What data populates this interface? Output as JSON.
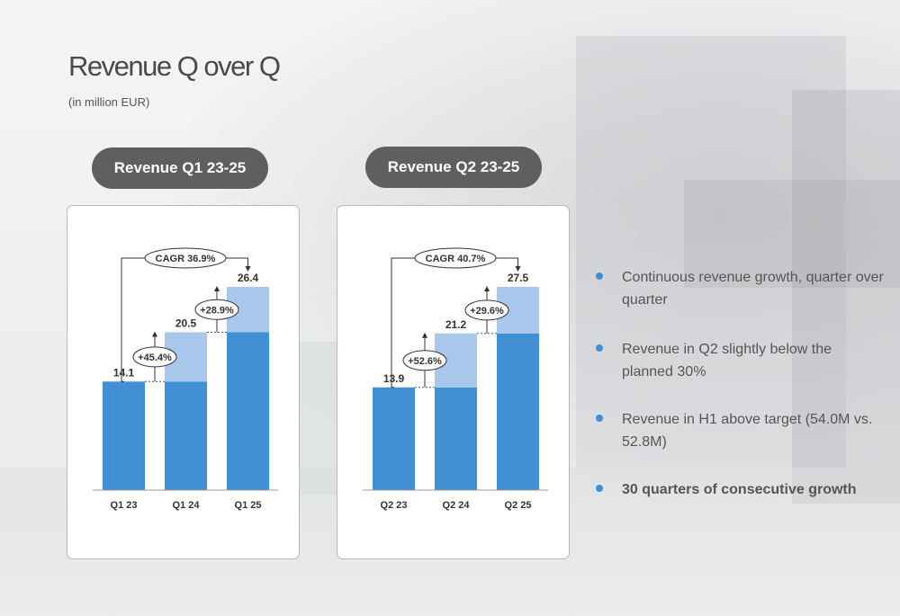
{
  "header": {
    "title": "Revenue Q over Q",
    "subtitle": "(in million EUR)"
  },
  "colors": {
    "base_bar": "#4190d4",
    "growth_bar": "#a9c7ea",
    "pill": "#5f5f5f",
    "bullet": "#3f8fd6"
  },
  "chart_data": [
    {
      "type": "bar",
      "title": "Revenue Q1 23-25",
      "categories": [
        "Q1 23",
        "Q1 24",
        "Q1 25"
      ],
      "values": [
        14.1,
        20.5,
        26.4
      ],
      "value_labels": [
        "14.1",
        "20.5",
        "26.4"
      ],
      "growth_labels": [
        "+45.4%",
        "+28.9%"
      ],
      "cagr_label": "CAGR 36.9%",
      "ylim": [
        0,
        26.4
      ]
    },
    {
      "type": "bar",
      "title": "Revenue Q2 23-25",
      "categories": [
        "Q2 23",
        "Q2 24",
        "Q2 25"
      ],
      "values": [
        13.9,
        21.2,
        27.5
      ],
      "value_labels": [
        "13.9",
        "21.2",
        "27.5"
      ],
      "growth_labels": [
        "+52.6%",
        "+29.6%"
      ],
      "cagr_label": "CAGR 40.7%",
      "ylim": [
        0,
        27.5
      ]
    }
  ],
  "bullets": [
    {
      "text": "Continuous revenue growth, quarter over quarter"
    },
    {
      "text": "Revenue in Q2 slightly below the planned 30%"
    },
    {
      "text": "Revenue in H1 above target (54.0M vs. 52.8M)"
    },
    {
      "text": "30 quarters of consecutive growth"
    }
  ]
}
